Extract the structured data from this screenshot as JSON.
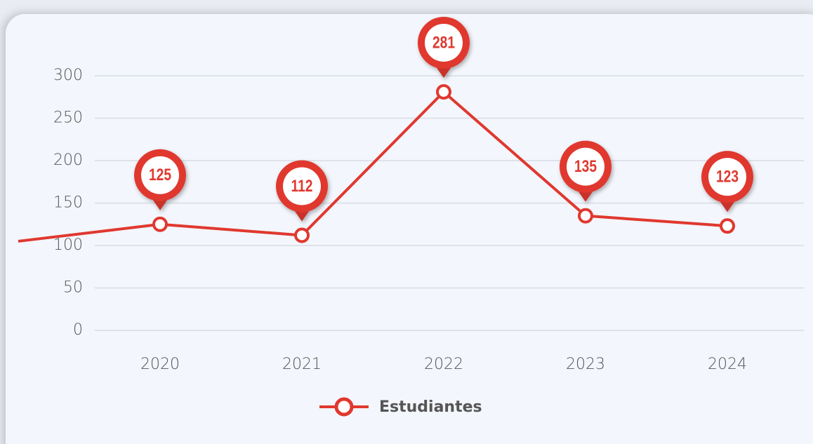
{
  "chart_data": {
    "type": "line",
    "categories": [
      null,
      "2020",
      "2021",
      "2022",
      "2023",
      "2024"
    ],
    "series": [
      {
        "name": "Estudiantes",
        "color": "#e0382f",
        "values": [
          105,
          125,
          112,
          281,
          135,
          123
        ]
      }
    ],
    "ylim": [
      0,
      300
    ],
    "yticks": [
      0,
      50,
      100,
      150,
      200,
      250,
      300
    ],
    "grid": true,
    "legend": "bottom"
  }
}
